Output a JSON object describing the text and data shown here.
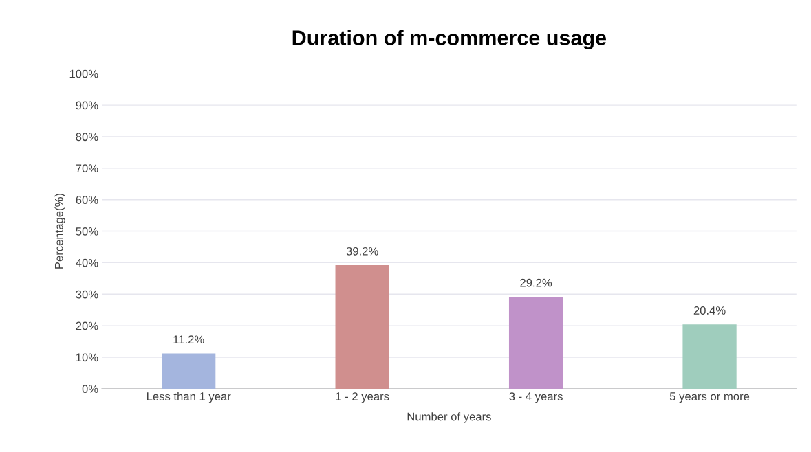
{
  "chart_data": {
    "type": "bar",
    "title": "Duration of m-commerce usage",
    "xlabel": "Number of years",
    "ylabel": "Percentage(%)",
    "categories": [
      "Less than 1 year",
      "1 - 2 years",
      "3 - 4 years",
      "5 years or more"
    ],
    "values": [
      11.2,
      39.2,
      29.2,
      20.4
    ],
    "colors": [
      "#a4b5de",
      "#d08f8e",
      "#c092c9",
      "#9fcdbd"
    ],
    "value_labels": [
      "11.2%",
      "39.2%",
      "29.2%",
      "20.4%"
    ],
    "ylim": [
      0,
      100
    ],
    "yticks": [
      {
        "value": 0,
        "label": "0%"
      },
      {
        "value": 10,
        "label": "10%"
      },
      {
        "value": 20,
        "label": "20%"
      },
      {
        "value": 30,
        "label": "30%"
      },
      {
        "value": 40,
        "label": "40%"
      },
      {
        "value": 50,
        "label": "50%"
      },
      {
        "value": 60,
        "label": "60%"
      },
      {
        "value": 70,
        "label": "70%"
      },
      {
        "value": 80,
        "label": "80%"
      },
      {
        "value": 90,
        "label": "90%"
      },
      {
        "value": 100,
        "label": "100%"
      }
    ],
    "grid": "y",
    "legend": false
  }
}
